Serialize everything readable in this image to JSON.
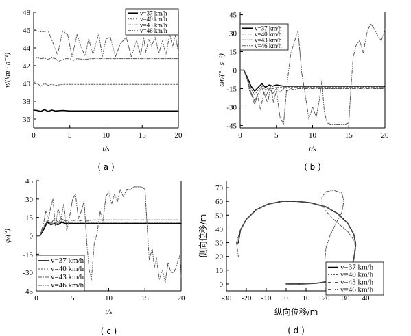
{
  "series_styles": [
    {
      "color": "#000000",
      "width": 1.6,
      "dash": ""
    },
    {
      "color": "#555555",
      "width": 1.0,
      "dash": "2,2"
    },
    {
      "color": "#555555",
      "width": 1.0,
      "dash": "5,2,1,2"
    },
    {
      "color": "#555555",
      "width": 1.0,
      "dash": "5,2,1,2,1,2"
    }
  ],
  "chart_data": [
    {
      "id": "a",
      "type": "line",
      "caption": "( a )",
      "xlabel": "t/s",
      "ylabel": "v/(km · h⁻¹)",
      "xlim": [
        0,
        20
      ],
      "ylim": [
        35,
        48
      ],
      "xticks": [
        0,
        5,
        10,
        15,
        20
      ],
      "yticks": [
        36,
        38,
        40,
        42,
        44,
        46,
        48
      ],
      "legend_position": "top-right",
      "series": [
        {
          "name": "v=37 km/h",
          "x": [
            0,
            0.5,
            1,
            1.5,
            2,
            2.5,
            3,
            4,
            5,
            8,
            12,
            16,
            20
          ],
          "y": [
            37,
            36.95,
            36.85,
            37.05,
            36.85,
            37.0,
            36.9,
            36.95,
            36.9,
            36.9,
            36.9,
            36.9,
            36.9
          ]
        },
        {
          "name": "v=40 km/h",
          "x": [
            0,
            0.5,
            1,
            1.5,
            2,
            2.5,
            3,
            4,
            5,
            8,
            12,
            16,
            20
          ],
          "y": [
            40.2,
            40.0,
            39.7,
            40.0,
            39.8,
            39.9,
            39.8,
            39.9,
            39.9,
            39.9,
            39.9,
            39.9,
            39.9
          ]
        },
        {
          "name": "v=43 km/h",
          "x": [
            0,
            0.5,
            1,
            1.5,
            2,
            2.5,
            3,
            3.5,
            4,
            4.5,
            5,
            5.5,
            6,
            7,
            8,
            10,
            12,
            14,
            16,
            18,
            20
          ],
          "y": [
            43,
            42.9,
            42.8,
            42.85,
            42.7,
            42.9,
            42.8,
            42.5,
            42.7,
            42.8,
            42.8,
            42.6,
            42.8,
            42.7,
            42.8,
            42.8,
            42.8,
            42.8,
            42.8,
            42.8,
            42.8
          ]
        },
        {
          "name": "v=46 km/h",
          "x": [
            0,
            1,
            2,
            2.7,
            3.3,
            4,
            4.7,
            5.3,
            6,
            6.6,
            7.1,
            7.6,
            8.2,
            9,
            9.5,
            10,
            10.6,
            11.3,
            12,
            12.8,
            13.5,
            14.2,
            14.8,
            15.2,
            15.5,
            15.9,
            16.3,
            16.8,
            17.3,
            17.8,
            18.3,
            18.8,
            19.2,
            19.6,
            20
          ],
          "y": [
            46,
            45.8,
            45.9,
            44.5,
            43.2,
            45.9,
            45.5,
            43.0,
            45.5,
            44.0,
            43.1,
            45.0,
            43.3,
            45.6,
            43.0,
            45.0,
            45.2,
            43.0,
            44.5,
            45.2,
            43.0,
            44.8,
            43.2,
            45.2,
            43.5,
            45.0,
            44.2,
            45.2,
            43.4,
            44.8,
            43.2,
            45.6,
            44.1,
            45.4,
            43.5
          ]
        }
      ]
    },
    {
      "id": "b",
      "type": "line",
      "caption": "( b )",
      "xlabel": "t/s",
      "ylabel": "ωr/(° · s⁻¹)",
      "xlim": [
        0,
        20
      ],
      "ylim": [
        -47,
        47
      ],
      "xticks": [
        0,
        5,
        10,
        15,
        20
      ],
      "yticks": [
        -45,
        -30,
        -15,
        0,
        15,
        30,
        45
      ],
      "legend_position": "top-left",
      "series": [
        {
          "name": "v=37 km/h",
          "x": [
            0,
            0.5,
            1,
            1.5,
            2,
            2.5,
            3,
            3.5,
            4,
            4.5,
            5,
            6,
            8,
            10,
            12,
            14,
            16,
            18,
            20
          ],
          "y": [
            0,
            0,
            -6,
            -13,
            -17,
            -14,
            -11,
            -14,
            -12,
            -13,
            -12,
            -13,
            -13,
            -13,
            -13,
            -13,
            -13,
            -13,
            -13
          ]
        },
        {
          "name": "v=40 km/h",
          "x": [
            0,
            0.5,
            1,
            1.5,
            2,
            2.5,
            3,
            3.5,
            4,
            4.5,
            5,
            6,
            8,
            10,
            12,
            14,
            16,
            18,
            20
          ],
          "y": [
            0,
            0,
            -7,
            -15,
            -20,
            -16,
            -13,
            -16,
            -14,
            -15,
            -14,
            -14,
            -14,
            -14,
            -14,
            -14,
            -14,
            -14,
            -14
          ]
        },
        {
          "name": "v=43 km/h",
          "x": [
            0,
            0.5,
            1,
            1.5,
            2,
            2.5,
            3,
            3.5,
            4,
            4.5,
            5,
            5.5,
            6,
            6.5,
            7,
            7.5,
            8,
            9,
            10,
            12,
            14,
            16,
            18,
            20
          ],
          "y": [
            0,
            0,
            -8,
            -18,
            -25,
            -19,
            -14,
            -22,
            -15,
            -19,
            -15,
            -18,
            -15,
            -17,
            -15,
            -16,
            -15,
            -15,
            -15,
            -15,
            -15,
            -15,
            -15,
            -15
          ]
        },
        {
          "name": "v=46 km/h",
          "x": [
            0,
            0.5,
            1,
            1.3,
            1.7,
            2,
            2.4,
            2.8,
            3.3,
            3.8,
            4.2,
            4.6,
            5,
            5.5,
            6,
            6.5,
            7,
            7.5,
            8,
            8.5,
            9,
            9.5,
            10,
            10.5,
            11,
            11.3,
            11.6,
            12,
            12.5,
            13,
            13.5,
            14,
            14.5,
            15,
            15.3,
            15.6,
            16,
            16.5,
            17,
            17.5,
            18,
            18.5,
            19,
            19.5,
            20
          ],
          "y": [
            0,
            0,
            -8,
            -17,
            -22,
            -28,
            -20,
            -32,
            -18,
            -27,
            -13,
            -26,
            -17,
            -38,
            -44,
            -10,
            14,
            23,
            32,
            -2,
            -20,
            -40,
            -30,
            -38,
            -22,
            -8,
            -33,
            -43,
            -44,
            -44,
            -44,
            -44,
            -44,
            -43,
            -15,
            10,
            20,
            24,
            14,
            30,
            38,
            34,
            28,
            24,
            33
          ]
        }
      ]
    },
    {
      "id": "c",
      "type": "line",
      "caption": "( c )",
      "xlabel": "t/s",
      "ylabel": "φ/(°)",
      "xlim": [
        0,
        20
      ],
      "ylim": [
        -45,
        45
      ],
      "xticks": [
        0,
        5,
        10,
        15,
        20
      ],
      "yticks": [
        -45,
        -30,
        -15,
        0,
        15,
        30,
        45
      ],
      "legend_position": "bottom-left",
      "series": [
        {
          "name": "v=37 km/h",
          "x": [
            0,
            0.5,
            1,
            1.5,
            2,
            2.5,
            3,
            3.5,
            4,
            4.5,
            5,
            6,
            8,
            10,
            12,
            14,
            16,
            18,
            20
          ],
          "y": [
            0,
            0,
            5,
            11,
            9,
            10,
            9,
            11,
            10,
            10,
            10,
            10,
            10,
            10,
            10,
            10,
            10,
            10,
            10
          ]
        },
        {
          "name": "v=40 km/h",
          "x": [
            0,
            0.5,
            1,
            1.5,
            2,
            2.5,
            3,
            3.5,
            4,
            4.5,
            5,
            6,
            8,
            10,
            12,
            14,
            16,
            18,
            20
          ],
          "y": [
            0,
            0,
            6,
            12,
            10,
            11,
            10,
            12,
            11,
            11,
            11,
            11,
            11,
            11,
            11,
            11,
            11,
            11,
            11
          ]
        },
        {
          "name": "v=43 km/h",
          "x": [
            0,
            0.5,
            1,
            1.5,
            2,
            2.5,
            3,
            3.5,
            4,
            4.5,
            5,
            5.5,
            6,
            6.5,
            7,
            8,
            10,
            12,
            14,
            16,
            18,
            20
          ],
          "y": [
            0,
            0,
            7,
            13,
            10,
            14,
            11,
            14,
            12,
            13,
            12,
            13,
            12,
            13,
            12,
            13,
            13,
            13,
            13,
            13,
            13,
            13
          ]
        },
        {
          "name": "v=46 km/h",
          "x": [
            0,
            0.5,
            1,
            1.3,
            1.7,
            2,
            2.3,
            2.6,
            3,
            3.4,
            3.8,
            4.2,
            4.6,
            5,
            5.4,
            5.8,
            6.2,
            6.6,
            7,
            7.3,
            7.6,
            8,
            8.4,
            8.8,
            9.2,
            9.6,
            10,
            10.4,
            10.8,
            11.2,
            11.6,
            12,
            12.5,
            13,
            13.5,
            14,
            14.5,
            15,
            15.3,
            15.6,
            16,
            16.3,
            16.6,
            17,
            17.4,
            17.8,
            18.2,
            18.6,
            19,
            19.4,
            19.8,
            20
          ],
          "y": [
            0,
            0,
            10,
            20,
            14,
            24,
            30,
            8,
            22,
            14,
            26,
            4,
            16,
            30,
            34,
            14,
            20,
            28,
            -8,
            -28,
            -36,
            -6,
            2,
            20,
            12,
            32,
            36,
            26,
            34,
            28,
            38,
            32,
            38,
            38,
            40,
            40,
            40,
            38,
            8,
            -20,
            -10,
            -26,
            -18,
            -36,
            -28,
            -38,
            -22,
            -30,
            -30,
            -24,
            -16,
            -34
          ]
        }
      ]
    },
    {
      "id": "d",
      "type": "line",
      "caption": "( d )",
      "xlabel": "纵向位移/m",
      "ylabel": "侧向位移/m",
      "xlim": [
        -30,
        40
      ],
      "ylim": [
        -5,
        75
      ],
      "xticks": [
        -30,
        -20,
        -10,
        0,
        10,
        20,
        30,
        40
      ],
      "yticks": [
        0,
        10,
        20,
        30,
        40,
        50,
        60,
        70
      ],
      "legend_position": "bottom-right",
      "series": [
        {
          "name": "v=37 km/h",
          "x": [
            0,
            8,
            15,
            22,
            28,
            31,
            33,
            34,
            34.5,
            35,
            34,
            31,
            26,
            20,
            12,
            5,
            -2,
            -9,
            -15,
            -20,
            -23,
            -24
          ],
          "y": [
            0,
            0,
            0.5,
            2,
            5,
            9,
            13,
            18,
            23,
            29,
            36,
            44,
            51,
            56,
            59,
            60,
            60,
            58,
            54,
            47,
            39,
            30
          ]
        },
        {
          "name": "v=40 km/h",
          "x": [
            0,
            8,
            15,
            22,
            28,
            31,
            33,
            34,
            34.5,
            35,
            34,
            31,
            26,
            20,
            12,
            5,
            -2,
            -9,
            -15,
            -20,
            -23,
            -24.5
          ],
          "y": [
            0,
            0,
            0.5,
            2,
            5,
            9,
            13,
            18,
            23,
            29,
            36,
            44,
            51,
            56,
            59,
            60,
            60,
            58,
            54,
            47,
            39,
            28
          ]
        },
        {
          "name": "v=43 km/h",
          "x": [
            0,
            8,
            15,
            22,
            28,
            31,
            33,
            34,
            34.5,
            35,
            34,
            31,
            26,
            20,
            12,
            5,
            -2,
            -9,
            -15,
            -20,
            -23,
            -25,
            -24
          ],
          "y": [
            0,
            0,
            0.5,
            2,
            5,
            9,
            13,
            18,
            23,
            29,
            36,
            44,
            51,
            56,
            59,
            60,
            60,
            58,
            54,
            47,
            39,
            30,
            20
          ]
        },
        {
          "name": "v=46 km/h",
          "x": [
            0,
            8,
            15,
            22,
            28,
            31,
            33,
            34,
            35,
            34,
            31,
            27,
            23,
            20,
            18,
            18,
            20,
            24,
            28,
            29,
            28,
            25,
            22,
            20,
            19.5
          ],
          "y": [
            0,
            0,
            0.5,
            2,
            5,
            9,
            13,
            18,
            25,
            32,
            38,
            43,
            48,
            53,
            58,
            63,
            67,
            68,
            66,
            60,
            52,
            44,
            35,
            26,
            18
          ]
        }
      ]
    }
  ]
}
